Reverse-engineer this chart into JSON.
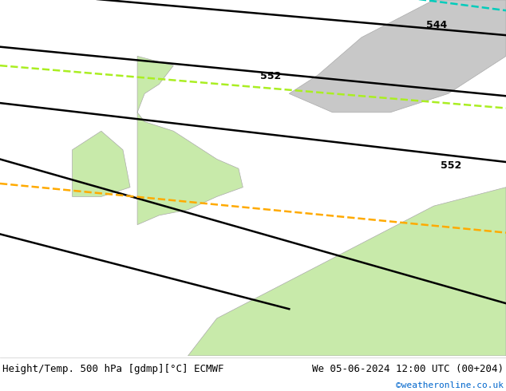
{
  "title_left": "Height/Temp. 500 hPa [gdmp][°C] ECMWF",
  "title_right": "We 05-06-2024 12:00 UTC (00+204)",
  "credit": "©weatheronline.co.uk",
  "bg_ocean": "#e0e0e0",
  "bg_land_cold": "#c8c8c8",
  "bg_land_warm": "#c8eaaa",
  "coast_color": "#aaaaaa",
  "border_color": "#aaaaaa",
  "geo_line_color": "#000000",
  "geo_linewidth": 1.8,
  "temp_cyan_color": "#00ccbb",
  "temp_yg_color": "#aaee22",
  "temp_orange_color": "#ffaa00",
  "temp_linewidth": 1.8,
  "font_title": 9,
  "font_credit": 8,
  "map_lon_min": -15,
  "map_lon_max": 20,
  "map_lat_min": 43,
  "map_lat_max": 62
}
